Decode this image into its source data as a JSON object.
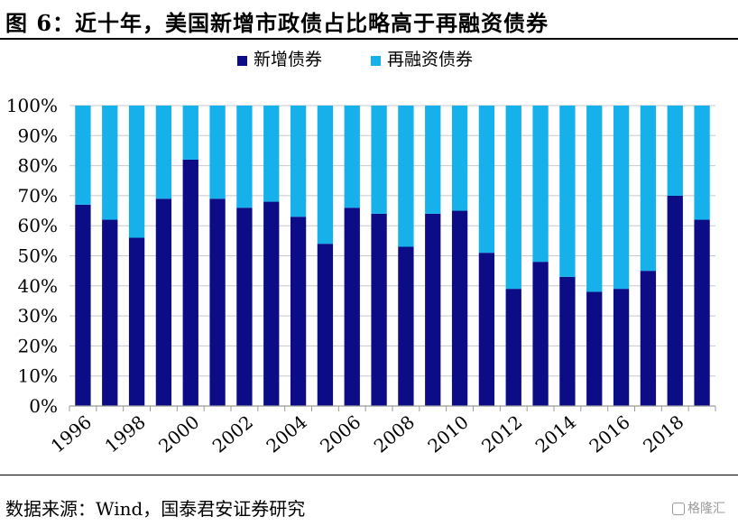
{
  "figure": {
    "title": "图 6：近十年，美国新增市政债占比略高于再融资债券",
    "source": "数据来源：Wind，国泰君安证券研究",
    "watermark": "格隆汇"
  },
  "colors": {
    "new_issue": "#0c0c86",
    "refinancing": "#16b0ea",
    "grid": "#c8c8c8",
    "axis": "#9a9a9a"
  },
  "chart_data": {
    "type": "bar",
    "stacked": true,
    "percent": true,
    "categories": [
      "1996",
      "1997",
      "1998",
      "1999",
      "2000",
      "2001",
      "2002",
      "2003",
      "2004",
      "2005",
      "2006",
      "2007",
      "2008",
      "2009",
      "2010",
      "2011",
      "2012",
      "2013",
      "2014",
      "2015",
      "2016",
      "2017",
      "2018",
      "2019"
    ],
    "x_tick_labels": [
      "1996",
      "1998",
      "2000",
      "2002",
      "2004",
      "2006",
      "2008",
      "2010",
      "2012",
      "2014",
      "2016",
      "2018"
    ],
    "series": [
      {
        "name": "新增债券",
        "values": [
          67,
          62,
          56,
          69,
          82,
          69,
          66,
          68,
          63,
          54,
          66,
          64,
          53,
          64,
          65,
          51,
          39,
          48,
          43,
          38,
          39,
          45,
          70,
          62
        ]
      },
      {
        "name": "再融资债券",
        "values": [
          33,
          38,
          44,
          31,
          18,
          31,
          34,
          32,
          37,
          46,
          34,
          36,
          47,
          36,
          35,
          49,
          61,
          52,
          57,
          62,
          61,
          55,
          30,
          38
        ]
      }
    ],
    "y_ticks": [
      "0%",
      "10%",
      "20%",
      "30%",
      "40%",
      "50%",
      "60%",
      "70%",
      "80%",
      "90%",
      "100%"
    ],
    "ylim": [
      0,
      100
    ],
    "grid": "horizontal",
    "legend_position": "top-center"
  }
}
